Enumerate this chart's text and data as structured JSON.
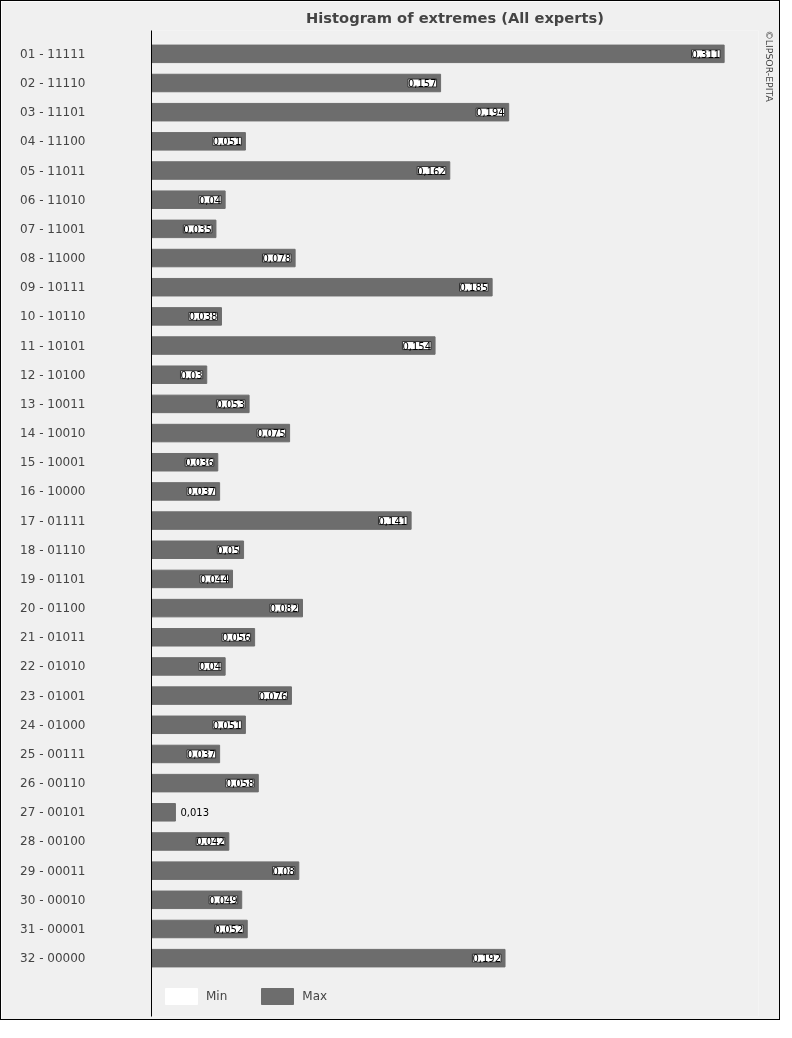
{
  "chart_data": {
    "type": "bar",
    "orientation": "horizontal",
    "title": "Histogram of extremes (All experts)",
    "categories": [
      "01 - 11111",
      "02 - 11110",
      "03 - 11101",
      "04 - 11100",
      "05 - 11011",
      "06 - 11010",
      "07 - 11001",
      "08 - 11000",
      "09 - 10111",
      "10 - 10110",
      "11 - 10101",
      "12 - 10100",
      "13 - 10011",
      "14 - 10010",
      "15 - 10001",
      "16 - 10000",
      "17 - 01111",
      "18 - 01110",
      "19 - 01101",
      "20 - 01100",
      "21 - 01011",
      "22 - 01010",
      "23 - 01001",
      "24 - 01000",
      "25 - 00111",
      "26 - 00110",
      "27 - 00101",
      "28 - 00100",
      "29 - 00011",
      "30 - 00010",
      "31 - 00001",
      "32 - 00000"
    ],
    "series": [
      {
        "name": "Min",
        "color": "#ffffff",
        "values": [
          0,
          0,
          0,
          0,
          0,
          0,
          0,
          0,
          0,
          0,
          0,
          0,
          0,
          0,
          0,
          0,
          0,
          0,
          0,
          0,
          0,
          0,
          0,
          0,
          0,
          0,
          0,
          0,
          0,
          0,
          0,
          0
        ]
      },
      {
        "name": "Max",
        "color": "#6d6d6d",
        "values": [
          0.311,
          0.157,
          0.194,
          0.051,
          0.162,
          0.04,
          0.035,
          0.078,
          0.185,
          0.038,
          0.154,
          0.03,
          0.053,
          0.075,
          0.036,
          0.037,
          0.141,
          0.05,
          0.044,
          0.082,
          0.056,
          0.04,
          0.076,
          0.051,
          0.037,
          0.058,
          0.013,
          0.042,
          0.08,
          0.049,
          0.052,
          0.192
        ],
        "value_labels": [
          "0,311",
          "0,157",
          "0,194",
          "0,051",
          "0,162",
          "0,04",
          "0,035",
          "0,078",
          "0,185",
          "0,038",
          "0,154",
          "0,03",
          "0,053",
          "0,075",
          "0,036",
          "0,037",
          "0,141",
          "0,05",
          "0,044",
          "0,082",
          "0,056",
          "0,04",
          "0,076",
          "0,051",
          "0,037",
          "0,058",
          "0,013",
          "0,042",
          "0,08",
          "0,049",
          "0,052",
          "0,192"
        ]
      }
    ],
    "legend": "bottom left",
    "annotations": [
      "©LIPSOR-EPITA"
    ]
  }
}
